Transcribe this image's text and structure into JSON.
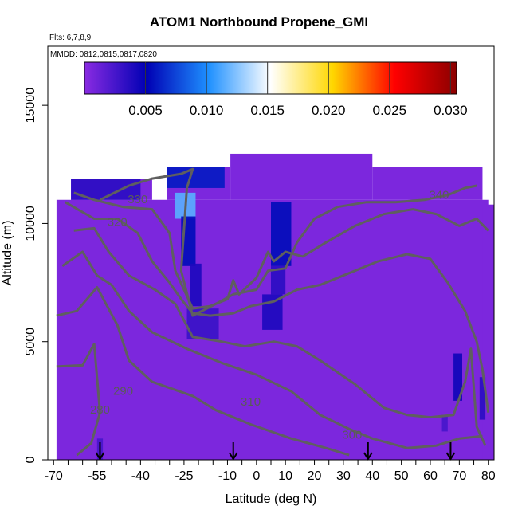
{
  "chart_data": {
    "type": "heatmap",
    "title": "ATOM1 Northbound Propene_GMI",
    "subtitle": "Flts: 6,7,8,9",
    "annotation": "MMDD: 0812,0815,0817,0820",
    "xlabel": "Latitude (deg N)",
    "ylabel": "Altitude (m)",
    "xlim": [
      -72,
      82
    ],
    "ylim": [
      0,
      17500
    ],
    "x_ticks": [
      -70,
      -55,
      -40,
      -25,
      -10,
      0,
      10,
      20,
      30,
      40,
      50,
      60,
      70,
      80
    ],
    "y_ticks": [
      0,
      5000,
      10000,
      15000
    ],
    "colorbar": {
      "range": [
        0,
        0.0305
      ],
      "ticks": [
        "0.005",
        "0.010",
        "0.015",
        "0.020",
        "0.025",
        "0.030"
      ],
      "tick_values": [
        0.005,
        0.01,
        0.015,
        0.02,
        0.025,
        0.03
      ],
      "colors": [
        "#8a2be2",
        "#0000b4",
        "#1e90ff",
        "#ffffff",
        "#ffd700",
        "#ff0000",
        "#8b0000"
      ]
    },
    "background_value": 0.0005,
    "field_extent": [
      {
        "lat_min": -69,
        "lat_max": 80,
        "alt_min": 0,
        "alt_max": 11000
      },
      {
        "lat_min": -64,
        "lat_max": -36,
        "alt_min": 11000,
        "alt_max": 11900
      },
      {
        "lat_min": -31,
        "lat_max": -9,
        "alt_min": 11000,
        "alt_max": 12400
      },
      {
        "lat_min": -9,
        "lat_max": 40,
        "alt_min": 11000,
        "alt_max": 12950
      },
      {
        "lat_min": 40,
        "lat_max": 78,
        "alt_min": 11000,
        "alt_max": 12400
      },
      {
        "lat_min": 78,
        "lat_max": 82,
        "alt_min": 0,
        "alt_max": 10800
      }
    ],
    "enhanced_regions": [
      {
        "lat_min": -64,
        "lat_max": -40,
        "alt_min": 11000,
        "alt_max": 11900,
        "value": 0.0035
      },
      {
        "lat_min": -31,
        "lat_max": -11,
        "alt_min": 11500,
        "alt_max": 12400,
        "value": 0.006
      },
      {
        "lat_min": -28,
        "lat_max": -21,
        "alt_min": 10200,
        "alt_max": 11300,
        "value": 0.0115
      },
      {
        "lat_min": -26,
        "lat_max": -21,
        "alt_min": 8200,
        "alt_max": 10300,
        "value": 0.0055
      },
      {
        "lat_min": -23,
        "lat_max": -19,
        "alt_min": 6500,
        "alt_max": 8300,
        "value": 0.004
      },
      {
        "lat_min": -24,
        "lat_max": -13,
        "alt_min": 5100,
        "alt_max": 6400,
        "value": 0.003
      },
      {
        "lat_min": 5,
        "lat_max": 12,
        "alt_min": 8200,
        "alt_max": 10900,
        "value": 0.0055
      },
      {
        "lat_min": 5,
        "lat_max": 10,
        "alt_min": 7000,
        "alt_max": 8200,
        "value": 0.0035
      },
      {
        "lat_min": 2,
        "lat_max": 9,
        "alt_min": 5500,
        "alt_max": 7000,
        "value": 0.004
      },
      {
        "lat_min": 68,
        "lat_max": 71,
        "alt_min": 2500,
        "alt_max": 4500,
        "value": 0.0045
      },
      {
        "lat_min": 77,
        "lat_max": 79,
        "alt_min": 1700,
        "alt_max": 3500,
        "value": 0.0035
      },
      {
        "lat_min": -55,
        "lat_max": -53,
        "alt_min": 0,
        "alt_max": 900,
        "value": 0.0025
      },
      {
        "lat_min": 64,
        "lat_max": 66,
        "alt_min": 1200,
        "alt_max": 1900,
        "value": 0.0025
      }
    ],
    "contour_lines": [
      {
        "level": 280,
        "label": "280",
        "label_at": [
          -54,
          1950
        ],
        "points": [
          [
            -69,
            3950
          ],
          [
            -60,
            4000
          ],
          [
            -56,
            4900
          ],
          [
            -54,
            2000
          ],
          [
            -57,
            700
          ],
          [
            -62,
            200
          ]
        ]
      },
      {
        "level": 290,
        "label": "290",
        "label_at": [
          -46,
          2750
        ],
        "points": [
          [
            -69,
            6100
          ],
          [
            -62,
            6300
          ],
          [
            -55,
            7300
          ],
          [
            -48,
            5700
          ],
          [
            -44,
            4200
          ],
          [
            -36,
            3300
          ],
          [
            -22,
            2700
          ],
          [
            -14,
            2100
          ],
          [
            -2,
            1500
          ],
          [
            12,
            900
          ],
          [
            24,
            500
          ],
          [
            32,
            200
          ]
        ]
      },
      {
        "level": 300,
        "label": "300",
        "label_at": [
          33,
          900
        ],
        "points": [
          [
            -67,
            8200
          ],
          [
            -60,
            8800
          ],
          [
            -55,
            7800
          ],
          [
            -50,
            7400
          ],
          [
            -44,
            6300
          ],
          [
            -36,
            5400
          ],
          [
            -24,
            4700
          ],
          [
            -12,
            4100
          ],
          [
            0,
            3600
          ],
          [
            12,
            2900
          ],
          [
            22,
            1900
          ],
          [
            32,
            1300
          ],
          [
            40,
            900
          ],
          [
            52,
            500
          ],
          [
            62,
            600
          ],
          [
            70,
            900
          ],
          [
            78,
            1000
          ]
        ]
      },
      {
        "level": 310,
        "label": "310",
        "label_at": [
          -2,
          2300
        ],
        "points": [
          [
            -63,
            9700
          ],
          [
            -56,
            9800
          ],
          [
            -51,
            8800
          ],
          [
            -44,
            7800
          ],
          [
            -35,
            7200
          ],
          [
            -28,
            6600
          ],
          [
            -22,
            5200
          ],
          [
            -12,
            5000
          ],
          [
            -4,
            4800
          ],
          [
            6,
            5000
          ],
          [
            14,
            4800
          ],
          [
            22,
            4200
          ],
          [
            34,
            3200
          ],
          [
            44,
            2200
          ],
          [
            52,
            1900
          ],
          [
            60,
            1800
          ],
          [
            68,
            1900
          ],
          [
            72,
            3300
          ],
          [
            74,
            4700
          ],
          [
            76,
            1400
          ],
          [
            79,
            600
          ]
        ]
      },
      {
        "level": 320,
        "label": "320",
        "label_at": [
          -48,
          9900
        ],
        "points": [
          [
            -66,
            10900
          ],
          [
            -56,
            10200
          ],
          [
            -48,
            10200
          ],
          [
            -41,
            9600
          ],
          [
            -36,
            8400
          ],
          [
            -30,
            7500
          ],
          [
            -26,
            6800
          ],
          [
            -22,
            6200
          ],
          [
            -16,
            6100
          ],
          [
            -8,
            6200
          ],
          [
            -2,
            6500
          ],
          [
            6,
            6700
          ],
          [
            14,
            7200
          ],
          [
            22,
            7400
          ],
          [
            30,
            7800
          ],
          [
            42,
            8400
          ],
          [
            52,
            8700
          ],
          [
            60,
            8500
          ],
          [
            66,
            7500
          ],
          [
            72,
            6300
          ],
          [
            76,
            5000
          ],
          [
            78,
            3800
          ],
          [
            80,
            2000
          ]
        ]
      },
      {
        "level": 330,
        "label": "330",
        "label_at": [
          -41,
          10850
        ],
        "points": [
          [
            -63,
            11300
          ],
          [
            -56,
            11000
          ],
          [
            -46,
            10700
          ],
          [
            -36,
            10600
          ],
          [
            -30,
            9600
          ],
          [
            -28,
            8000
          ],
          [
            -22,
            6400
          ],
          [
            -16,
            6500
          ],
          [
            -10,
            6800
          ],
          [
            -8,
            7600
          ],
          [
            -6,
            7000
          ],
          [
            0,
            7700
          ],
          [
            4,
            8800
          ],
          [
            6,
            8400
          ],
          [
            10,
            8800
          ],
          [
            16,
            8600
          ],
          [
            24,
            9200
          ],
          [
            34,
            9900
          ],
          [
            44,
            10400
          ],
          [
            54,
            10600
          ],
          [
            62,
            10400
          ],
          [
            70,
            9900
          ],
          [
            76,
            10200
          ],
          [
            80,
            9700
          ]
        ]
      },
      {
        "level": 340,
        "label": "340",
        "label_at": [
          63,
          11050
        ],
        "points": [
          [
            -54,
            11000
          ],
          [
            -44,
            11600
          ],
          [
            -36,
            11900
          ],
          [
            -26,
            12100
          ],
          [
            -22,
            12300
          ],
          [
            -24,
            11500
          ],
          [
            -26,
            8000
          ],
          [
            -22,
            6100
          ],
          [
            -14,
            6600
          ],
          [
            -8,
            7000
          ],
          [
            0,
            7200
          ],
          [
            4,
            8000
          ],
          [
            10,
            8100
          ],
          [
            14,
            9200
          ],
          [
            20,
            10200
          ],
          [
            28,
            10700
          ],
          [
            38,
            10900
          ],
          [
            48,
            10900
          ],
          [
            58,
            11000
          ],
          [
            66,
            11200
          ],
          [
            72,
            11500
          ],
          [
            76,
            11600
          ]
        ]
      }
    ],
    "flight_markers": {
      "lats": [
        -54,
        -8,
        38.5,
        67
      ]
    }
  }
}
